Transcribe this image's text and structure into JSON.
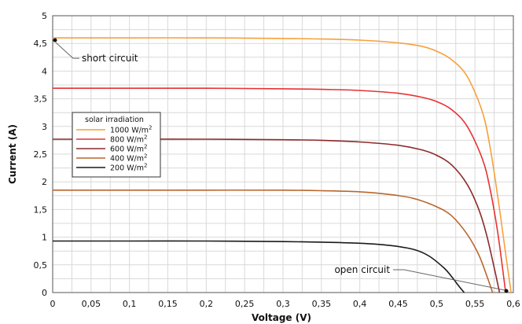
{
  "chart_data": {
    "type": "line",
    "xlabel": "Voltage (V)",
    "ylabel": "Current (A)",
    "xlim": [
      0,
      0.6
    ],
    "ylim": [
      0,
      5
    ],
    "x_ticks": [
      "0",
      "0,05",
      "0,1",
      "0,15",
      "0,2",
      "0,25",
      "0,3",
      "0,35",
      "0,4",
      "0,45",
      "0,5",
      "0,55",
      "0,6"
    ],
    "y_ticks": [
      "0",
      "0,5",
      "1",
      "1,5",
      "2",
      "2,5",
      "3",
      "3,5",
      "4",
      "4,5",
      "5"
    ],
    "grid": true,
    "legend": {
      "title": "solar irradiation",
      "placement": "left-middle",
      "unit_base": "W/m",
      "unit_sup": "2"
    },
    "series": [
      {
        "name": "1000",
        "color": "#f7a03c",
        "x": [
          0,
          0.1,
          0.2,
          0.3,
          0.35,
          0.4,
          0.45,
          0.48,
          0.5,
          0.52,
          0.54,
          0.56,
          0.57,
          0.58,
          0.59,
          0.597
        ],
        "y": [
          4.6,
          4.6,
          4.6,
          4.59,
          4.58,
          4.56,
          4.51,
          4.45,
          4.36,
          4.2,
          3.9,
          3.25,
          2.6,
          1.7,
          0.7,
          0
        ]
      },
      {
        "name": "800",
        "color": "#e63232",
        "x": [
          0,
          0.1,
          0.2,
          0.3,
          0.35,
          0.4,
          0.45,
          0.48,
          0.5,
          0.52,
          0.54,
          0.56,
          0.57,
          0.58,
          0.59
        ],
        "y": [
          3.69,
          3.69,
          3.69,
          3.68,
          3.67,
          3.65,
          3.6,
          3.53,
          3.45,
          3.3,
          3.0,
          2.4,
          1.85,
          1.05,
          0
        ]
      },
      {
        "name": "600",
        "color": "#8c2a2a",
        "x": [
          0,
          0.1,
          0.2,
          0.3,
          0.35,
          0.4,
          0.45,
          0.48,
          0.5,
          0.52,
          0.54,
          0.555,
          0.565,
          0.575,
          0.582
        ],
        "y": [
          2.77,
          2.77,
          2.77,
          2.76,
          2.75,
          2.72,
          2.66,
          2.58,
          2.48,
          2.3,
          1.95,
          1.5,
          1.05,
          0.45,
          0
        ]
      },
      {
        "name": "400",
        "color": "#b9672e",
        "x": [
          0,
          0.1,
          0.2,
          0.3,
          0.35,
          0.4,
          0.44,
          0.47,
          0.5,
          0.52,
          0.54,
          0.555,
          0.565,
          0.573
        ],
        "y": [
          1.85,
          1.85,
          1.85,
          1.85,
          1.84,
          1.82,
          1.77,
          1.7,
          1.55,
          1.38,
          1.05,
          0.68,
          0.32,
          0
        ]
      },
      {
        "name": "200",
        "color": "#1a1a1a",
        "x": [
          0,
          0.1,
          0.2,
          0.3,
          0.35,
          0.4,
          0.44,
          0.47,
          0.49,
          0.51,
          0.52,
          0.53,
          0.536
        ],
        "y": [
          0.93,
          0.93,
          0.93,
          0.92,
          0.91,
          0.89,
          0.85,
          0.78,
          0.66,
          0.44,
          0.28,
          0.1,
          0
        ]
      }
    ],
    "annotations": [
      {
        "text": "short circuit",
        "x": 0,
        "y": 4.6
      },
      {
        "text": "open circuit",
        "x": 0.597,
        "y": 0
      }
    ]
  }
}
